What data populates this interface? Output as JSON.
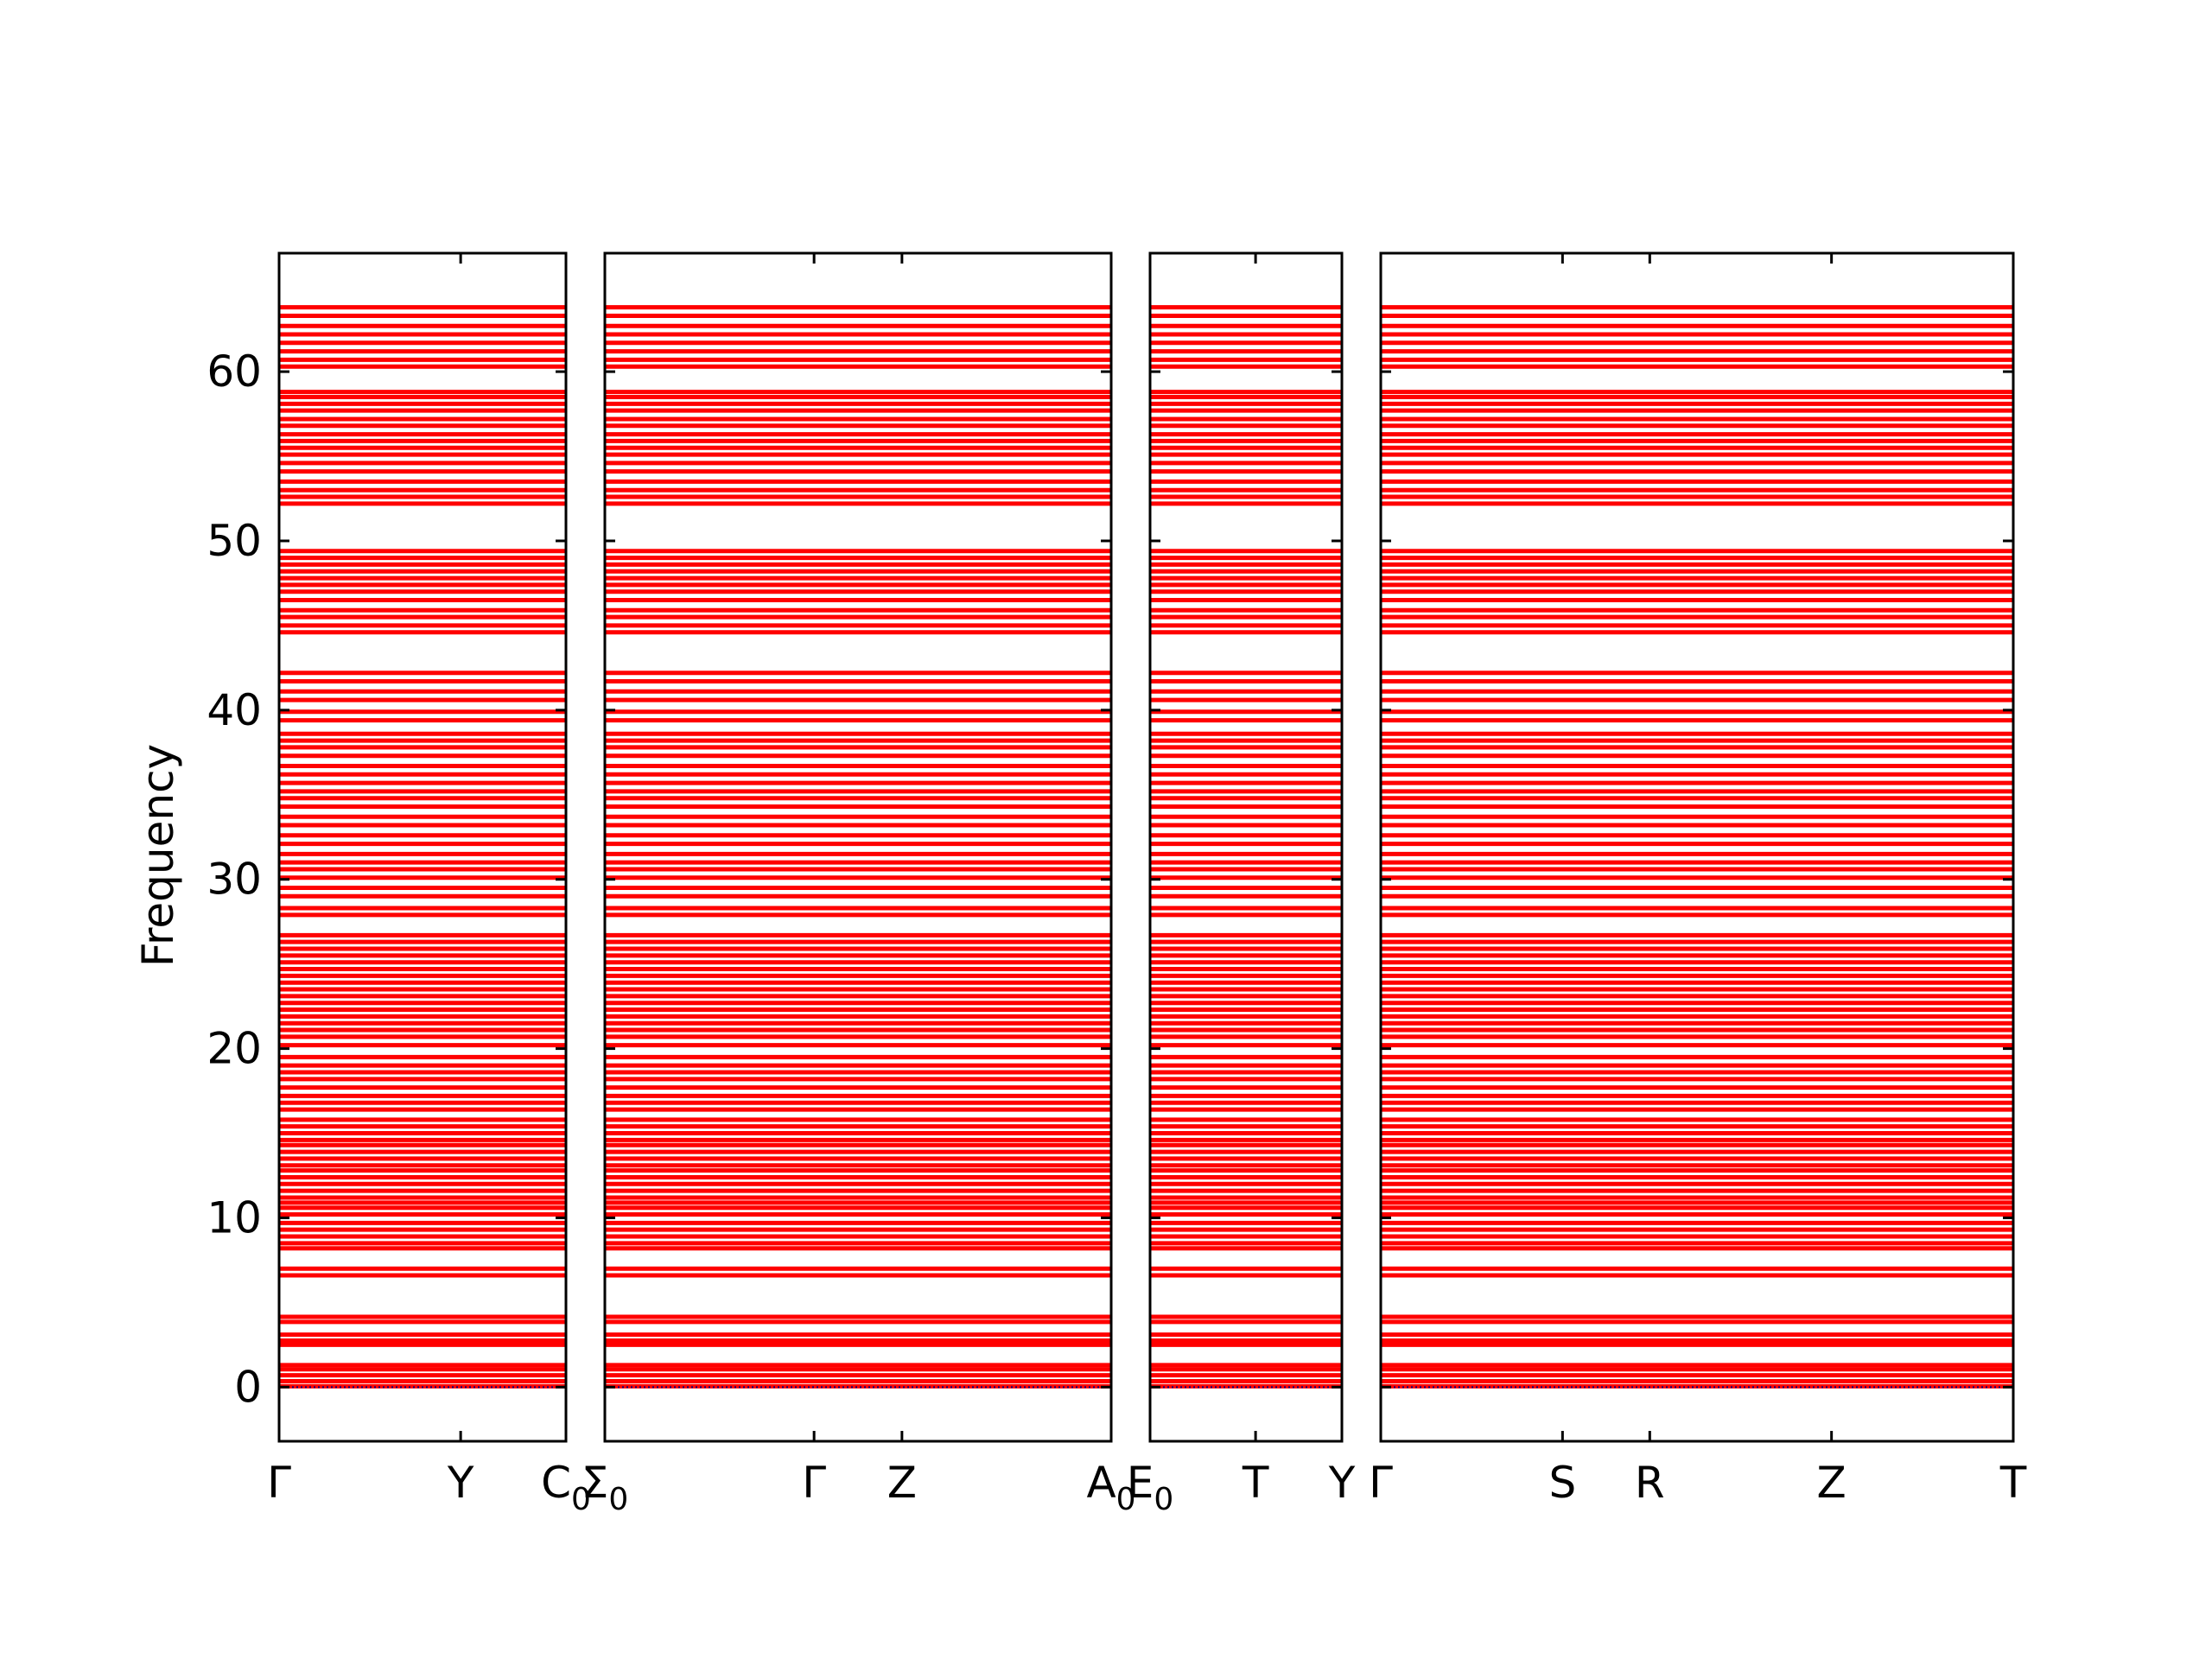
{
  "chart_data": {
    "type": "line",
    "ylabel": "Frequency",
    "ylim": [
      -3.2,
      67
    ],
    "yticks": [
      0,
      10,
      20,
      30,
      40,
      50,
      60
    ],
    "band_color": "#ff0000",
    "zero_line_color": "#000080",
    "panels": [
      {
        "labels": [
          "Γ",
          "Y",
          "C0"
        ],
        "x": [
          0,
          1.0,
          1.58
        ]
      },
      {
        "labels": [
          "Σ0",
          "Γ",
          "Z",
          "A0"
        ],
        "x": [
          0,
          1.0,
          1.42,
          2.42
        ]
      },
      {
        "labels": [
          "E0",
          "T",
          "Y"
        ],
        "x": [
          0,
          0.55,
          1.0
        ]
      },
      {
        "labels": [
          "Γ",
          "S",
          "R",
          "Z",
          "T"
        ],
        "x": [
          0,
          1.0,
          1.48,
          2.48,
          3.48
        ]
      }
    ],
    "tick_label_chars": [
      "Γ",
      "Y",
      "C",
      "Σ",
      "Γ",
      "Z",
      "A",
      "E",
      "T",
      "Y",
      "Γ",
      "S",
      "R",
      "Z",
      "T"
    ],
    "tick_label_subscripts": [
      "0",
      "0",
      "0",
      "0"
    ],
    "bands": [
      0.05,
      0.35,
      0.7,
      1.05,
      1.3,
      2.5,
      2.75,
      3.1,
      3.85,
      4.15,
      6.6,
      7.0,
      8.2,
      8.5,
      8.9,
      9.3,
      9.7,
      10.2,
      10.6,
      10.9,
      11.2,
      11.6,
      12.0,
      12.4,
      12.8,
      13.1,
      13.5,
      13.9,
      14.3,
      14.6,
      15.0,
      15.4,
      15.8,
      16.4,
      16.8,
      17.2,
      17.7,
      18.2,
      18.6,
      19.0,
      19.5,
      20.2,
      20.7,
      21.1,
      21.5,
      21.9,
      22.3,
      22.7,
      23.1,
      23.5,
      23.9,
      24.3,
      24.7,
      25.1,
      25.5,
      25.9,
      26.3,
      26.7,
      27.9,
      28.3,
      29.0,
      29.5,
      30.1,
      30.6,
      31.0,
      31.5,
      32.1,
      32.6,
      33.2,
      33.7,
      34.3,
      34.8,
      35.2,
      35.7,
      36.2,
      36.7,
      37.3,
      37.8,
      38.2,
      38.6,
      39.4,
      39.9,
      40.6,
      41.1,
      41.7,
      42.2,
      44.6,
      45.0,
      45.5,
      45.9,
      46.5,
      47.0,
      47.4,
      47.8,
      48.2,
      48.6,
      49.0,
      49.4,
      52.2,
      52.6,
      53.0,
      53.5,
      54.1,
      54.6,
      55.1,
      55.5,
      55.9,
      56.3,
      56.8,
      57.2,
      57.7,
      58.1,
      58.5,
      58.8,
      60.3,
      60.7,
      61.2,
      61.7,
      62.2,
      62.7,
      63.3,
      63.8
    ]
  }
}
